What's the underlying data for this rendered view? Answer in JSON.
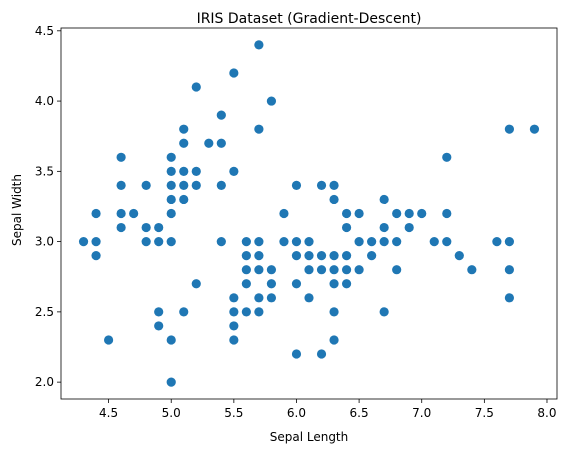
{
  "chart_data": {
    "type": "scatter",
    "title": "IRIS Dataset (Gradient-Descent)",
    "xlabel": "Sepal Length",
    "ylabel": "Sepal Width",
    "xlim": [
      4.12,
      8.08
    ],
    "ylim": [
      1.88,
      4.52
    ],
    "xticks": [
      "4.5",
      "5.0",
      "5.5",
      "6.0",
      "6.5",
      "7.0",
      "7.5",
      "8.0"
    ],
    "yticks": [
      "2.0",
      "2.5",
      "3.0",
      "3.5",
      "4.0",
      "4.5"
    ],
    "grid": false,
    "marker_color": "#1f77b4",
    "points": [
      [
        4.3,
        3.0
      ],
      [
        4.4,
        3.2
      ],
      [
        4.4,
        3.0
      ],
      [
        4.4,
        2.9
      ],
      [
        4.5,
        2.3
      ],
      [
        4.6,
        3.6
      ],
      [
        4.6,
        3.4
      ],
      [
        4.6,
        3.2
      ],
      [
        4.6,
        3.1
      ],
      [
        4.7,
        3.2
      ],
      [
        4.8,
        3.4
      ],
      [
        4.8,
        3.1
      ],
      [
        4.8,
        3.0
      ],
      [
        4.9,
        3.1
      ],
      [
        4.9,
        3.0
      ],
      [
        4.9,
        2.5
      ],
      [
        4.9,
        2.4
      ],
      [
        5.0,
        3.6
      ],
      [
        5.0,
        3.5
      ],
      [
        5.0,
        3.4
      ],
      [
        5.0,
        3.3
      ],
      [
        5.0,
        3.2
      ],
      [
        5.0,
        3.0
      ],
      [
        5.0,
        2.3
      ],
      [
        5.0,
        2.0
      ],
      [
        5.1,
        3.8
      ],
      [
        5.1,
        3.7
      ],
      [
        5.1,
        3.5
      ],
      [
        5.1,
        3.4
      ],
      [
        5.1,
        3.3
      ],
      [
        5.1,
        2.5
      ],
      [
        5.2,
        4.1
      ],
      [
        5.2,
        3.5
      ],
      [
        5.2,
        3.4
      ],
      [
        5.2,
        2.7
      ],
      [
        5.3,
        3.7
      ],
      [
        5.4,
        3.9
      ],
      [
        5.4,
        3.7
      ],
      [
        5.4,
        3.4
      ],
      [
        5.4,
        3.0
      ],
      [
        5.5,
        4.2
      ],
      [
        5.5,
        3.5
      ],
      [
        5.5,
        2.6
      ],
      [
        5.5,
        2.5
      ],
      [
        5.5,
        2.4
      ],
      [
        5.5,
        2.3
      ],
      [
        5.6,
        3.0
      ],
      [
        5.6,
        2.9
      ],
      [
        5.6,
        2.8
      ],
      [
        5.6,
        2.7
      ],
      [
        5.6,
        2.5
      ],
      [
        5.7,
        4.4
      ],
      [
        5.7,
        3.8
      ],
      [
        5.7,
        3.0
      ],
      [
        5.7,
        2.9
      ],
      [
        5.7,
        2.8
      ],
      [
        5.7,
        2.6
      ],
      [
        5.7,
        2.5
      ],
      [
        5.8,
        4.0
      ],
      [
        5.8,
        2.8
      ],
      [
        5.8,
        2.7
      ],
      [
        5.8,
        2.6
      ],
      [
        5.9,
        3.2
      ],
      [
        5.9,
        3.0
      ],
      [
        6.0,
        3.4
      ],
      [
        6.0,
        3.0
      ],
      [
        6.0,
        2.9
      ],
      [
        6.0,
        2.7
      ],
      [
        6.0,
        2.2
      ],
      [
        6.1,
        3.0
      ],
      [
        6.1,
        2.9
      ],
      [
        6.1,
        2.8
      ],
      [
        6.1,
        2.6
      ],
      [
        6.2,
        3.4
      ],
      [
        6.2,
        2.9
      ],
      [
        6.2,
        2.8
      ],
      [
        6.2,
        2.2
      ],
      [
        6.3,
        3.4
      ],
      [
        6.3,
        3.3
      ],
      [
        6.3,
        2.9
      ],
      [
        6.3,
        2.8
      ],
      [
        6.3,
        2.7
      ],
      [
        6.3,
        2.5
      ],
      [
        6.3,
        2.3
      ],
      [
        6.4,
        3.2
      ],
      [
        6.4,
        3.1
      ],
      [
        6.4,
        2.9
      ],
      [
        6.4,
        2.8
      ],
      [
        6.4,
        2.7
      ],
      [
        6.5,
        3.2
      ],
      [
        6.5,
        3.0
      ],
      [
        6.5,
        2.8
      ],
      [
        6.6,
        3.0
      ],
      [
        6.6,
        2.9
      ],
      [
        6.7,
        3.3
      ],
      [
        6.7,
        3.1
      ],
      [
        6.7,
        3.0
      ],
      [
        6.7,
        2.5
      ],
      [
        6.8,
        3.2
      ],
      [
        6.8,
        3.0
      ],
      [
        6.8,
        2.8
      ],
      [
        6.9,
        3.2
      ],
      [
        6.9,
        3.1
      ],
      [
        7.0,
        3.2
      ],
      [
        7.1,
        3.0
      ],
      [
        7.2,
        3.6
      ],
      [
        7.2,
        3.2
      ],
      [
        7.2,
        3.0
      ],
      [
        7.3,
        2.9
      ],
      [
        7.4,
        2.8
      ],
      [
        7.6,
        3.0
      ],
      [
        7.7,
        3.8
      ],
      [
        7.7,
        3.0
      ],
      [
        7.7,
        2.8
      ],
      [
        7.7,
        2.6
      ],
      [
        7.9,
        3.8
      ]
    ]
  }
}
